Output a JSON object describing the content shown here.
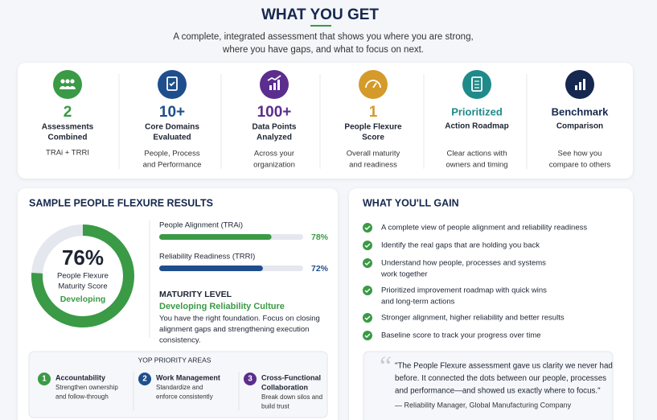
{
  "header": {
    "title": "WHAT YOU GET",
    "subtitle_lines": [
      "A complete, integrated assessment that shows you where you are strong,",
      "where you have gaps, and what to focus on next."
    ]
  },
  "stats": [
    {
      "value": "2",
      "label_lines": [
        "Assessments",
        "Combined"
      ],
      "desc_lines": [
        "TRAi + TRRI"
      ]
    },
    {
      "value": "10+",
      "label_lines": [
        "Core Domains",
        "Evaluated"
      ],
      "desc_lines": [
        "People, Process",
        "and Performance"
      ]
    },
    {
      "value": "100+",
      "label_lines": [
        "Data Points",
        "Analyzed"
      ],
      "desc_lines": [
        "Across your",
        "organization"
      ]
    },
    {
      "value": "1",
      "label_lines": [
        "People Flexure",
        "Score"
      ],
      "desc_lines": [
        "Overall maturity",
        "and readiness"
      ]
    },
    {
      "value": "Prioritized",
      "label_lines": [
        "Action Roadmap"
      ],
      "desc_lines": [
        "Clear actions with",
        "owners and timing"
      ]
    },
    {
      "value": "Benchmark",
      "label_lines": [
        "Comparison"
      ],
      "desc_lines": [
        "See how you",
        "compare to others"
      ]
    }
  ],
  "results": {
    "title": "SAMPLE PEOPLE FLEXURE RESULTS",
    "score": {
      "value": 76,
      "label": "76%"
    },
    "score_label_lines": [
      "People Flexure",
      "Maturity Score"
    ],
    "status": "Developing",
    "bars": [
      {
        "name": "People Alignment (TRAi)",
        "value": 78,
        "label": "78%"
      },
      {
        "name": "Reliability Readiness (TRRI)",
        "value": 72,
        "label": "72%"
      }
    ],
    "maturity_heading": "MATURITY LEVEL",
    "maturity_level": "Developing Reliability Culture",
    "maturity_text_lines": [
      "You have the right foundation. Focus on closing",
      "alignment gaps and strengthening execution",
      "consistency."
    ],
    "priority_title": "YOP PRIORITY AREAS",
    "priorities": [
      {
        "number": "1",
        "title_lines": [
          "Accountability"
        ],
        "desc_lines": [
          "Strengthen ownership",
          "and follow-through"
        ]
      },
      {
        "number": "2",
        "title_lines": [
          "Work Management"
        ],
        "desc_lines": [
          "Standardize and",
          "enforce consistently"
        ]
      },
      {
        "number": "3",
        "title_lines": [
          "Cross-Functional",
          "Collaboration"
        ],
        "desc_lines": [
          "Break down silos and",
          "build trust"
        ]
      }
    ]
  },
  "gain": {
    "title": "WHAT YOU'LL GAIN",
    "items": [
      {
        "lines": [
          "A complete view of people alignment and reliability readiness"
        ]
      },
      {
        "lines": [
          "Identify the real gaps that are holding you back"
        ]
      },
      {
        "lines": [
          "Understand how people, processes and systems",
          "work together"
        ]
      },
      {
        "lines": [
          "Prioritized improvement roadmap with quick wins",
          "and long-term actions"
        ]
      },
      {
        "lines": [
          "Stronger alignment, higher reliability and better results"
        ]
      },
      {
        "lines": [
          "Baseline score to track your progress over time"
        ]
      }
    ],
    "quote_lines": [
      "\"The People Flexure assessment gave us clarity we never had",
      "before. It connected the dots between our people, processes",
      "and performance—and showed us exactly where to focus.\""
    ],
    "attribution": "— Reliability Manager, Global Manufacturing Company"
  }
}
